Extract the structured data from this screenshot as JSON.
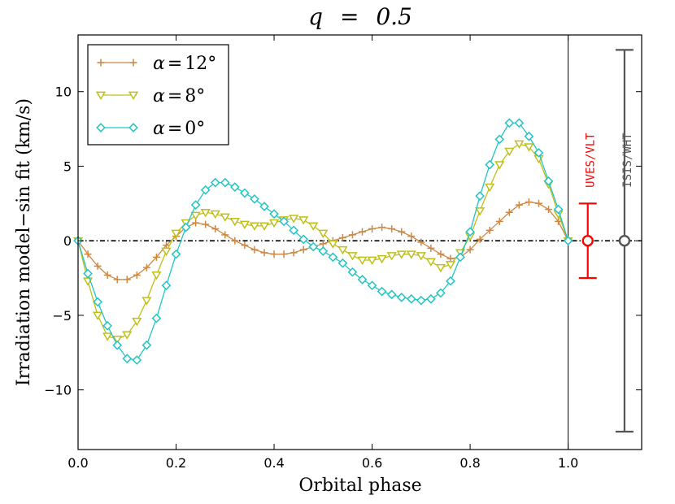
{
  "chart_data": {
    "type": "line",
    "title": "q = 0.5",
    "title_parts": {
      "var": "q",
      "eq": "=",
      "num": "0.5"
    },
    "xlabel": "Orbital phase",
    "ylabel": "Irradiation model−sin fit (km/s)",
    "xlim": [
      0.0,
      1.15
    ],
    "ylim": [
      -14.0,
      13.8
    ],
    "xticks": [
      0.0,
      0.2,
      0.4,
      0.6,
      0.8,
      1.0
    ],
    "xtick_labels": [
      "0.0",
      "0.2",
      "0.4",
      "0.6",
      "0.8",
      "1.0"
    ],
    "yticks": [
      -10,
      -5,
      0,
      5,
      10
    ],
    "ytick_labels": [
      "−10",
      "−5",
      "0",
      "5",
      "10"
    ],
    "zero_line": {
      "y": 0,
      "style": "dash-dot"
    },
    "vertical_line": {
      "x": 1.0
    },
    "legend_position": "top-left",
    "x": [
      0.0,
      0.02,
      0.04,
      0.06,
      0.08,
      0.1,
      0.12,
      0.14,
      0.16,
      0.18,
      0.2,
      0.22,
      0.24,
      0.26,
      0.28,
      0.3,
      0.32,
      0.34,
      0.36,
      0.38,
      0.4,
      0.42,
      0.44,
      0.46,
      0.48,
      0.5,
      0.52,
      0.54,
      0.56,
      0.58,
      0.6,
      0.62,
      0.64,
      0.66,
      0.68,
      0.7,
      0.72,
      0.74,
      0.76,
      0.78,
      0.8,
      0.82,
      0.84,
      0.86,
      0.88,
      0.9,
      0.92,
      0.94,
      0.96,
      0.98,
      1.0
    ],
    "series": [
      {
        "name": "α = 12°",
        "legend": {
          "greek": "α",
          "eq": "=",
          "value": "12°"
        },
        "color": "#cc8844",
        "marker": "plus",
        "values": [
          0.0,
          -0.9,
          -1.7,
          -2.3,
          -2.6,
          -2.6,
          -2.3,
          -1.8,
          -1.1,
          -0.3,
          0.3,
          0.9,
          1.2,
          1.1,
          0.8,
          0.4,
          0.0,
          -0.3,
          -0.6,
          -0.8,
          -0.9,
          -0.9,
          -0.8,
          -0.6,
          -0.4,
          -0.2,
          0.0,
          0.2,
          0.4,
          0.6,
          0.8,
          0.9,
          0.8,
          0.6,
          0.3,
          -0.1,
          -0.5,
          -0.9,
          -1.2,
          -1.1,
          -0.6,
          0.1,
          0.7,
          1.3,
          1.9,
          2.4,
          2.6,
          2.5,
          2.1,
          1.3,
          0.0
        ]
      },
      {
        "name": "α = 8°",
        "legend": {
          "greek": "α",
          "eq": "=",
          "value": "8°"
        },
        "color": "#bfbf1a",
        "marker": "triangle-down",
        "values": [
          0.0,
          -2.7,
          -5.0,
          -6.4,
          -6.6,
          -6.3,
          -5.4,
          -4.0,
          -2.3,
          -0.7,
          0.5,
          1.2,
          1.7,
          1.9,
          1.8,
          1.6,
          1.3,
          1.1,
          1.0,
          1.0,
          1.2,
          1.4,
          1.5,
          1.4,
          1.0,
          0.5,
          -0.2,
          -0.6,
          -1.0,
          -1.3,
          -1.3,
          -1.2,
          -1.0,
          -0.9,
          -0.9,
          -1.0,
          -1.4,
          -1.8,
          -1.6,
          -0.8,
          0.3,
          2.0,
          3.6,
          5.1,
          6.0,
          6.5,
          6.3,
          5.5,
          3.8,
          1.8,
          0.0
        ]
      },
      {
        "name": "α = 0°",
        "legend": {
          "greek": "α",
          "eq": "=",
          "value": "0°"
        },
        "color": "#22c4c4",
        "marker": "diamond",
        "values": [
          0.0,
          -2.2,
          -4.1,
          -5.7,
          -7.0,
          -7.9,
          -8.0,
          -7.0,
          -5.2,
          -3.0,
          -0.9,
          0.9,
          2.4,
          3.4,
          3.9,
          3.9,
          3.6,
          3.2,
          2.8,
          2.3,
          1.8,
          1.3,
          0.7,
          0.1,
          -0.4,
          -0.7,
          -1.1,
          -1.5,
          -2.1,
          -2.6,
          -3.0,
          -3.4,
          -3.6,
          -3.8,
          -3.9,
          -4.0,
          -3.9,
          -3.5,
          -2.7,
          -1.1,
          0.6,
          3.0,
          5.1,
          6.8,
          7.9,
          7.9,
          7.0,
          5.9,
          4.0,
          2.1,
          0.0
        ]
      }
    ],
    "error_bars": [
      {
        "label": "UVES/VLT",
        "x": 1.04,
        "y": 0.0,
        "err": 2.5,
        "color": "#ff0000"
      },
      {
        "label": "ISIS/WHT",
        "x": 1.115,
        "y": 0.0,
        "err": 12.8,
        "color": "#555555"
      }
    ]
  }
}
